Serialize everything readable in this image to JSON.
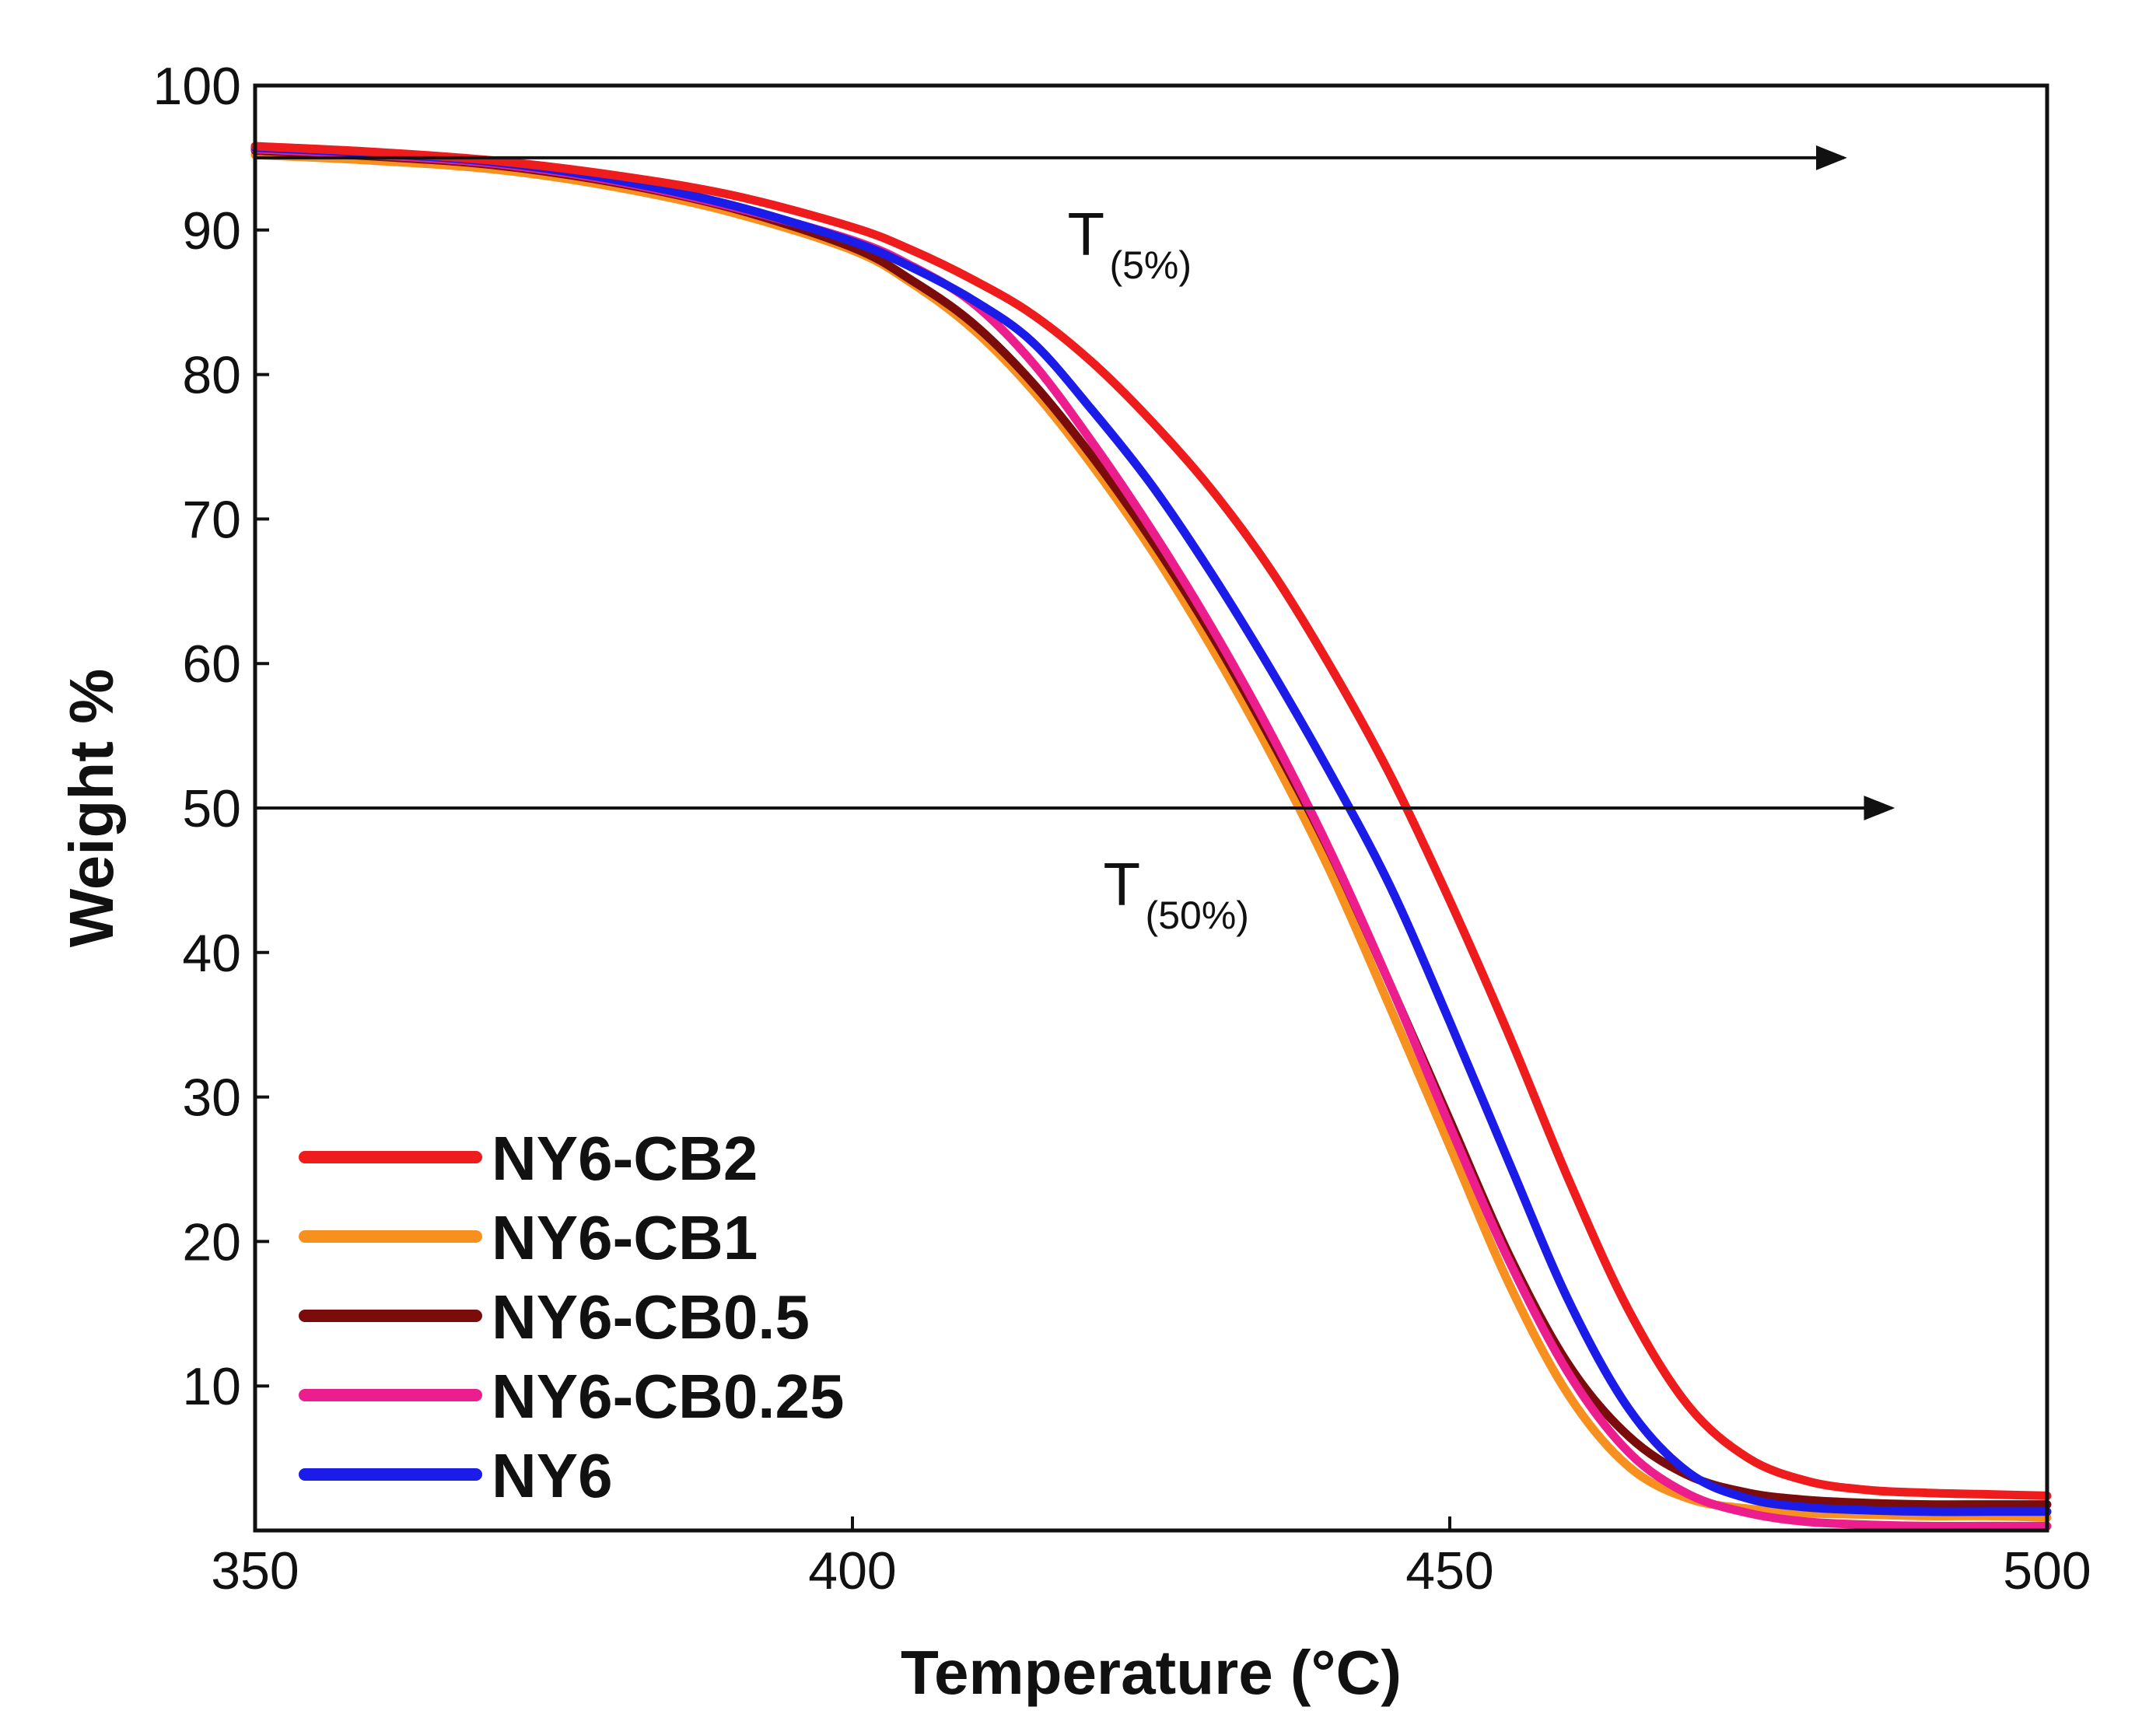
{
  "chart_data": {
    "type": "line",
    "title": "",
    "xlabel": "Temperature (°C)",
    "ylabel": "Weight %",
    "xlim": [
      350,
      500
    ],
    "ylim": [
      0,
      100
    ],
    "xticks": [
      350,
      400,
      450,
      500
    ],
    "yticks": [
      10,
      20,
      30,
      40,
      50,
      60,
      70,
      80,
      90,
      100
    ],
    "grid": false,
    "legend_position": "bottom-left",
    "annotations": [
      {
        "id": "t5",
        "main": "T",
        "sub": "(5%)",
        "y": 95,
        "x_end": 483,
        "label_x": 418
      },
      {
        "id": "t50",
        "main": "T",
        "sub": "(50%)",
        "y": 50,
        "x_end": 487,
        "label_x": 421
      }
    ],
    "series": [
      {
        "name": "NY6-CB2",
        "color": "#ee1c1c",
        "x": [
          350,
          360,
          370,
          380,
          390,
          400,
          405,
          410,
          415,
          420,
          425,
          430,
          435,
          440,
          445,
          450,
          455,
          460,
          465,
          470,
          475,
          480,
          485,
          490,
          495,
          500
        ],
        "y": [
          95.8,
          95.4,
          94.8,
          93.8,
          92.4,
          90.2,
          88.6,
          86.6,
          84.2,
          80.9,
          76.8,
          72.1,
          66.5,
          59.8,
          52.3,
          43.6,
          34.2,
          24.2,
          15.2,
          8.6,
          5.0,
          3.4,
          2.8,
          2.6,
          2.5,
          2.4
        ]
      },
      {
        "name": "NY6-CB1",
        "color": "#f7901e",
        "x": [
          350,
          360,
          370,
          380,
          390,
          400,
          405,
          410,
          415,
          420,
          425,
          430,
          435,
          440,
          445,
          450,
          455,
          460,
          465,
          470,
          475,
          480,
          485,
          490,
          495,
          500
        ],
        "y": [
          95.2,
          94.8,
          94.2,
          93.0,
          91.2,
          88.6,
          86.3,
          83.2,
          79.0,
          73.8,
          67.9,
          61.2,
          53.8,
          45.6,
          36.2,
          26.6,
          17.0,
          9.3,
          4.4,
          2.2,
          1.5,
          1.2,
          1.1,
          1.0,
          1.0,
          0.9
        ]
      },
      {
        "name": "NY6-CB0.5",
        "color": "#7a0c0c",
        "x": [
          350,
          360,
          370,
          380,
          390,
          400,
          405,
          410,
          415,
          420,
          425,
          430,
          435,
          440,
          445,
          450,
          455,
          460,
          465,
          470,
          475,
          480,
          485,
          490,
          495,
          500
        ],
        "y": [
          95.5,
          95.1,
          94.5,
          93.3,
          91.5,
          88.8,
          86.5,
          83.6,
          79.5,
          74.4,
          68.6,
          62.1,
          54.8,
          46.9,
          37.8,
          28.4,
          19.0,
          11.4,
          6.5,
          3.8,
          2.6,
          2.1,
          1.9,
          1.8,
          1.8,
          1.8
        ]
      },
      {
        "name": "NY6-CB0.25",
        "color": "#ec1e8e",
        "x": [
          350,
          360,
          370,
          380,
          390,
          400,
          405,
          410,
          415,
          420,
          425,
          430,
          435,
          440,
          445,
          450,
          455,
          460,
          465,
          470,
          475,
          480,
          485,
          490,
          495,
          500
        ],
        "y": [
          95.6,
          95.2,
          94.6,
          93.4,
          91.6,
          89.3,
          87.5,
          85.0,
          80.9,
          75.4,
          69.3,
          62.6,
          55.2,
          47.0,
          37.8,
          28.0,
          18.6,
          10.8,
          5.4,
          2.5,
          1.2,
          0.6,
          0.4,
          0.3,
          0.3,
          0.3
        ]
      },
      {
        "name": "NY6",
        "color": "#1c1ce8",
        "x": [
          350,
          360,
          370,
          380,
          390,
          400,
          405,
          410,
          415,
          420,
          425,
          430,
          435,
          440,
          445,
          450,
          455,
          460,
          465,
          470,
          475,
          480,
          485,
          490,
          495,
          500
        ],
        "y": [
          95.7,
          95.3,
          94.7,
          93.5,
          91.7,
          89.2,
          87.4,
          85.2,
          82.3,
          77.6,
          72.4,
          66.3,
          59.6,
          52.4,
          44.6,
          35.2,
          25.4,
          15.8,
          8.4,
          4.0,
          2.2,
          1.6,
          1.4,
          1.3,
          1.3,
          1.3
        ]
      }
    ]
  }
}
